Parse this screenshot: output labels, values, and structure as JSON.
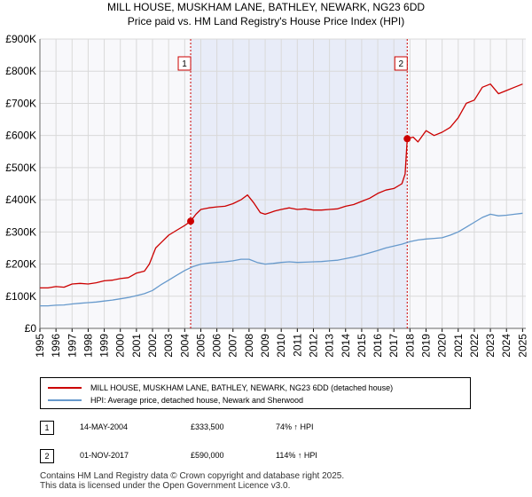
{
  "chart_data": {
    "type": "line",
    "title": "MILL HOUSE, MUSKHAM LANE, BATHLEY, NEWARK, NG23 6DD",
    "subtitle": "Price paid vs. HM Land Registry's House Price Index (HPI)",
    "xlim": [
      1995,
      2025.2
    ],
    "ylim": [
      0,
      900000
    ],
    "yticks": [
      0,
      100000,
      200000,
      300000,
      400000,
      500000,
      600000,
      700000,
      800000,
      900000
    ],
    "ytick_labels": [
      "£0",
      "£100K",
      "£200K",
      "£300K",
      "£400K",
      "£500K",
      "£600K",
      "£700K",
      "£800K",
      "£900K"
    ],
    "xticks": [
      1995,
      1996,
      1997,
      1998,
      1999,
      2000,
      2001,
      2002,
      2003,
      2004,
      2005,
      2006,
      2007,
      2008,
      2009,
      2010,
      2011,
      2012,
      2013,
      2014,
      2015,
      2016,
      2017,
      2018,
      2019,
      2020,
      2021,
      2022,
      2023,
      2024,
      2025
    ],
    "xtick_labels": [
      "1995",
      "1996",
      "1997",
      "1998",
      "1999",
      "2000",
      "2001",
      "2002",
      "2003",
      "2004",
      "2005",
      "2006",
      "2007",
      "2008",
      "2009",
      "2010",
      "2011",
      "2012",
      "2013",
      "2014",
      "2015",
      "2016",
      "2017",
      "2018",
      "2019",
      "2020",
      "2021",
      "2022",
      "2023",
      "2024",
      "2025"
    ],
    "grid": true,
    "shaded_period": [
      2004.37,
      2017.83
    ],
    "series": [
      {
        "name": "MILL HOUSE, MUSKHAM LANE, BATHLEY, NEWARK, NG23 6DD (detached house)",
        "color": "#cc0000",
        "x": [
          1995.0,
          1995.5,
          1996.0,
          1996.5,
          1997.0,
          1997.5,
          1998.0,
          1998.5,
          1999.0,
          1999.5,
          2000.0,
          2000.5,
          2001.0,
          2001.5,
          2001.8,
          2002.2,
          2002.6,
          2003.0,
          2003.5,
          2004.0,
          2004.37,
          2004.7,
          2005.0,
          2005.5,
          2006.0,
          2006.5,
          2007.0,
          2007.5,
          2007.9,
          2008.3,
          2008.5,
          2008.7,
          2009.0,
          2009.3,
          2009.6,
          2010.0,
          2010.5,
          2011.0,
          2011.5,
          2012.0,
          2012.5,
          2013.0,
          2013.5,
          2014.0,
          2014.5,
          2015.0,
          2015.5,
          2016.0,
          2016.5,
          2017.0,
          2017.5,
          2017.7,
          2017.83,
          2018.2,
          2018.5,
          2019.0,
          2019.5,
          2020.0,
          2020.5,
          2021.0,
          2021.5,
          2022.0,
          2022.5,
          2023.0,
          2023.5,
          2024.0,
          2024.5,
          2025.0
        ],
        "values": [
          126000,
          126000,
          130000,
          128000,
          138000,
          140000,
          138000,
          142000,
          148000,
          150000,
          155000,
          158000,
          172000,
          178000,
          200000,
          250000,
          270000,
          290000,
          305000,
          320000,
          333500,
          355000,
          370000,
          375000,
          378000,
          380000,
          388000,
          400000,
          415000,
          390000,
          375000,
          360000,
          355000,
          360000,
          365000,
          370000,
          375000,
          370000,
          372000,
          368000,
          368000,
          370000,
          372000,
          380000,
          385000,
          395000,
          405000,
          420000,
          430000,
          435000,
          450000,
          480000,
          590000,
          595000,
          580000,
          615000,
          600000,
          610000,
          625000,
          655000,
          700000,
          710000,
          750000,
          760000,
          730000,
          740000,
          750000,
          760000
        ]
      },
      {
        "name": "HPI: Average price, detached house, Newark and Sherwood",
        "color": "#6699cc",
        "x": [
          1995.0,
          1995.5,
          1996.0,
          1996.5,
          1997.0,
          1997.5,
          1998.0,
          1998.5,
          1999.0,
          1999.5,
          2000.0,
          2000.5,
          2001.0,
          2001.5,
          2002.0,
          2002.5,
          2003.0,
          2003.5,
          2004.0,
          2004.5,
          2005.0,
          2005.5,
          2006.0,
          2006.5,
          2007.0,
          2007.5,
          2008.0,
          2008.5,
          2009.0,
          2009.5,
          2010.0,
          2010.5,
          2011.0,
          2011.5,
          2012.0,
          2012.5,
          2013.0,
          2013.5,
          2014.0,
          2014.5,
          2015.0,
          2015.5,
          2016.0,
          2016.5,
          2017.0,
          2017.5,
          2018.0,
          2018.5,
          2019.0,
          2019.5,
          2020.0,
          2020.5,
          2021.0,
          2021.5,
          2022.0,
          2022.5,
          2023.0,
          2023.5,
          2024.0,
          2024.5,
          2025.0
        ],
        "values": [
          70000,
          70000,
          72000,
          73000,
          76000,
          78000,
          80000,
          82000,
          85000,
          88000,
          92000,
          96000,
          102000,
          108000,
          118000,
          135000,
          150000,
          165000,
          180000,
          192000,
          200000,
          203000,
          205000,
          207000,
          210000,
          215000,
          215000,
          205000,
          200000,
          202000,
          205000,
          207000,
          205000,
          206000,
          207000,
          208000,
          210000,
          212000,
          217000,
          222000,
          228000,
          235000,
          242000,
          250000,
          256000,
          262000,
          270000,
          275000,
          278000,
          280000,
          282000,
          290000,
          300000,
          315000,
          330000,
          345000,
          355000,
          350000,
          352000,
          355000,
          358000
        ]
      }
    ],
    "annotations": [
      {
        "label": "1",
        "x": 2004.37,
        "value": 333500
      },
      {
        "label": "2",
        "x": 2017.83,
        "value": 590000
      }
    ]
  },
  "legend": {
    "items": [
      {
        "label": "MILL HOUSE, MUSKHAM LANE, BATHLEY, NEWARK, NG23 6DD (detached house)",
        "color": "#cc0000"
      },
      {
        "label": "HPI: Average price, detached house, Newark and Sherwood",
        "color": "#6699cc"
      }
    ]
  },
  "sales": [
    {
      "label": "1",
      "date": "14-MAY-2004",
      "price": "£333,500",
      "hpi": "74% ↑ HPI"
    },
    {
      "label": "2",
      "date": "01-NOV-2017",
      "price": "£590,000",
      "hpi": "114% ↑ HPI"
    }
  ],
  "footer": {
    "line1": "Contains HM Land Registry data © Crown copyright and database right 2025.",
    "line2": "This data is licensed under the Open Government Licence v3.0."
  }
}
